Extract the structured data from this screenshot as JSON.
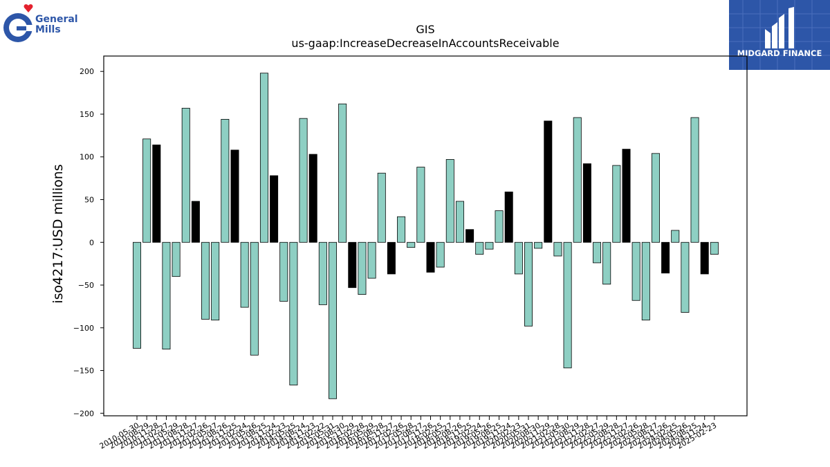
{
  "logos": {
    "left_brand_line1": "General",
    "left_brand_line2": "Mills",
    "right_brand": "MIDGARD FINANCE"
  },
  "colors": {
    "teal_bar": "#8ecfc3",
    "black_bar": "#000000",
    "brand_blue": "#2d56a8",
    "heart_red": "#e4212e"
  },
  "chart_data": {
    "type": "bar",
    "title": "GIS",
    "subtitle": "us-gaap:IncreaseDecreaseInAccountsReceivable",
    "ylabel": "iso4217:USD  millions",
    "xlabel": "",
    "ylim": [
      -203,
      218
    ],
    "yticks": [
      200,
      150,
      100,
      50,
      0,
      -50,
      -100,
      -150,
      -200
    ],
    "ytick_labels": [
      "200",
      "150",
      "100",
      "50",
      "0",
      "−50",
      "−100",
      "−150",
      "−200"
    ],
    "grid": false,
    "categories": [
      "2010-05-30",
      "2010-08-29",
      "2010-11-28",
      "2011-02-27",
      "2011-05-29",
      "2011-08-28",
      "2011-11-27",
      "2012-02-26",
      "2012-05-27",
      "2012-08-26",
      "2012-11-25",
      "2013-02-24",
      "2013-05-26",
      "2013-08-25",
      "2013-11-24",
      "2014-02-23",
      "2014-05-25",
      "2014-08-24",
      "2014-11-23",
      "2015-02-22",
      "2015-05-31",
      "2015-08-30",
      "2015-11-29",
      "2016-02-28",
      "2016-05-29",
      "2016-08-28",
      "2016-11-27",
      "2017-02-26",
      "2017-05-28",
      "2017-08-27",
      "2017-11-26",
      "2018-02-25",
      "2018-05-27",
      "2018-08-26",
      "2018-11-25",
      "2019-02-24",
      "2019-05-26",
      "2019-08-25",
      "2019-11-24",
      "2020-02-23",
      "2020-05-31",
      "2020-08-30",
      "2020-11-29",
      "2021-02-28",
      "2021-05-30",
      "2021-08-29",
      "2021-11-28",
      "2022-02-27",
      "2022-05-29",
      "2022-08-28",
      "2022-11-27",
      "2023-02-26",
      "2023-05-28",
      "2023-08-27",
      "2023-11-26",
      "2024-02-25",
      "2024-05-26",
      "2024-08-25",
      "2024-11-24",
      "2025-02-23"
    ],
    "values": [
      -124,
      121,
      114,
      -125,
      -40,
      157,
      48,
      -90,
      -91,
      144,
      108,
      -76,
      -132,
      198,
      78,
      -69,
      -167,
      145,
      103,
      -73,
      -183,
      162,
      -53,
      -61,
      -42,
      81,
      -37,
      30,
      -6,
      88,
      -35,
      -29,
      97,
      48,
      15,
      -14,
      -8,
      37,
      59,
      -37,
      -98,
      -7,
      142,
      -16,
      -147,
      146,
      92,
      -24,
      -49,
      90,
      109,
      -68,
      -91,
      104,
      -36,
      14,
      -82,
      146,
      -37,
      -14
    ],
    "bar_colors": [
      "teal",
      "teal",
      "black",
      "teal",
      "teal",
      "teal",
      "black",
      "teal",
      "teal",
      "teal",
      "black",
      "teal",
      "teal",
      "teal",
      "black",
      "teal",
      "teal",
      "teal",
      "black",
      "teal",
      "teal",
      "teal",
      "black",
      "teal",
      "teal",
      "teal",
      "black",
      "teal",
      "teal",
      "teal",
      "black",
      "teal",
      "teal",
      "teal",
      "black",
      "teal",
      "teal",
      "teal",
      "black",
      "teal",
      "teal",
      "teal",
      "black",
      "teal",
      "teal",
      "teal",
      "black",
      "teal",
      "teal",
      "teal",
      "black",
      "teal",
      "teal",
      "teal",
      "black",
      "teal",
      "teal",
      "teal",
      "black",
      "teal"
    ]
  }
}
